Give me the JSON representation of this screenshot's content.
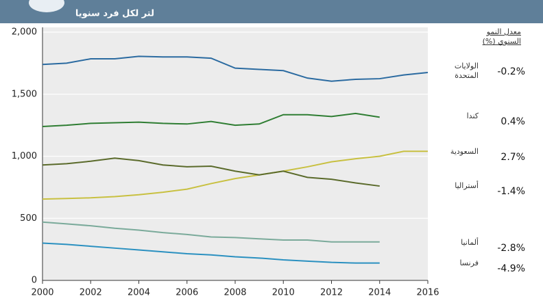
{
  "chart_data": {
    "type": "line",
    "title": "لتر لكل فرد سنويا",
    "legend_title": "معدل النمو السنوي (%)",
    "x": [
      2000,
      2001,
      2002,
      2003,
      2004,
      2005,
      2006,
      2007,
      2008,
      2009,
      2010,
      2011,
      2012,
      2013,
      2014,
      2015,
      2016
    ],
    "xlim": [
      2000,
      2016
    ],
    "xticks": [
      2000,
      2002,
      2004,
      2006,
      2008,
      2010,
      2012,
      2014,
      2016
    ],
    "ylim": [
      0,
      2000
    ],
    "yticks": [
      0,
      500,
      {
        "value": 1000,
        "label": "1,000"
      },
      {
        "value": 1500,
        "label": "1,500"
      },
      {
        "value": 2000,
        "label": "2,000"
      }
    ],
    "grid": true,
    "series": [
      {
        "name": "الولايات المتحدة",
        "color": "#2a6aa0",
        "growth": {
          "value": -0.2,
          "label": "-0.2%"
        },
        "values": [
          1740,
          1750,
          1785,
          1785,
          1805,
          1800,
          1800,
          1790,
          1710,
          1700,
          1690,
          1630,
          1605,
          1620,
          1625,
          1655,
          1675
        ]
      },
      {
        "name": "كندا",
        "color": "#2e7d32",
        "growth": {
          "value": 0.4,
          "label": "0.4%"
        },
        "values": [
          1240,
          1250,
          1265,
          1270,
          1275,
          1265,
          1260,
          1280,
          1250,
          1260,
          1335,
          1335,
          1320,
          1345,
          1315,
          null,
          null
        ]
      },
      {
        "name": "السعودية",
        "color": "#c8c040",
        "growth": {
          "value": 2.7,
          "label": "2.7%"
        },
        "values": [
          655,
          660,
          665,
          675,
          690,
          710,
          735,
          780,
          820,
          850,
          880,
          915,
          955,
          980,
          1000,
          1040,
          1040
        ]
      },
      {
        "name": "أستراليا",
        "color": "#5a6a2a",
        "growth": {
          "value": -1.4,
          "label": "-1.4%"
        },
        "values": [
          930,
          940,
          960,
          985,
          965,
          930,
          915,
          920,
          880,
          850,
          880,
          830,
          815,
          785,
          760,
          null,
          null
        ]
      },
      {
        "name": "ألمانيا",
        "color": "#7aaa9a",
        "growth": {
          "value": -2.8,
          "label": "-2.8%"
        },
        "values": [
          470,
          455,
          440,
          420,
          405,
          385,
          370,
          350,
          345,
          335,
          325,
          325,
          310,
          310,
          310,
          null,
          null
        ]
      },
      {
        "name": "فرنسا",
        "color": "#2a90c0",
        "growth": {
          "value": -4.9,
          "label": "-4.9%"
        },
        "values": [
          300,
          290,
          275,
          260,
          245,
          230,
          215,
          205,
          190,
          180,
          165,
          155,
          145,
          140,
          140,
          null,
          null
        ]
      }
    ]
  }
}
